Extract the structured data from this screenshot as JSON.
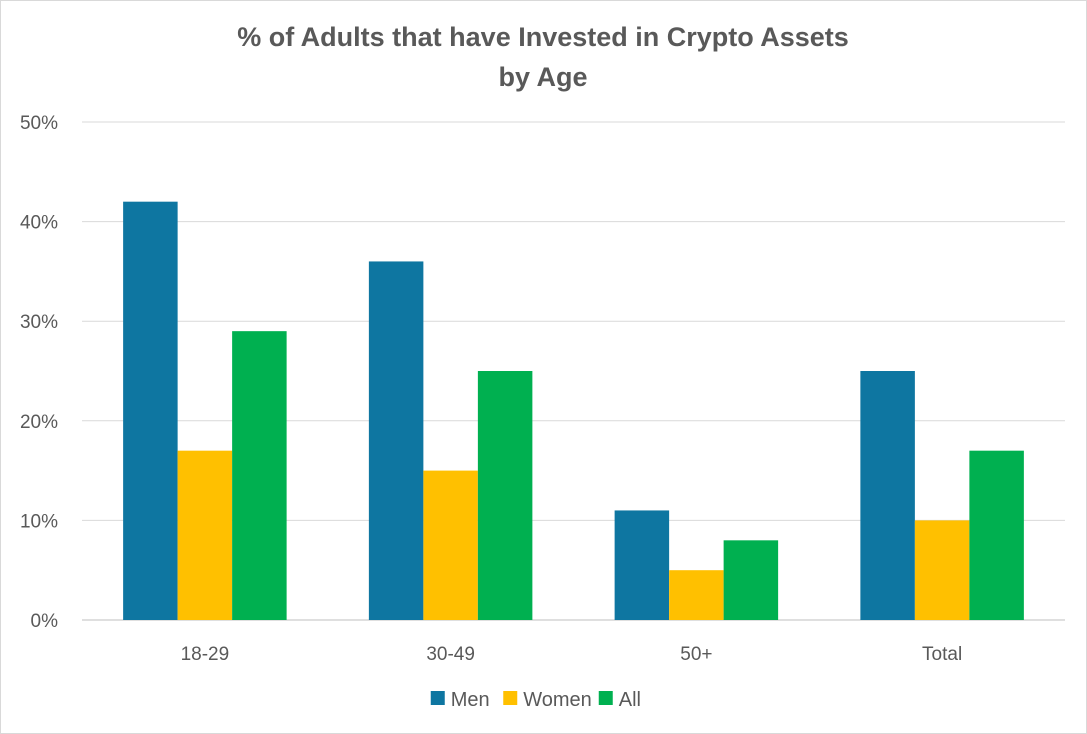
{
  "chart_data": {
    "type": "bar",
    "title_lines": [
      "% of Adults that have Invested in Crypto Assets",
      "by Age"
    ],
    "categories": [
      "18-29",
      "30-49",
      "50+",
      "Total"
    ],
    "series": [
      {
        "name": "Men",
        "color": "#0e76a1",
        "values": [
          42,
          36,
          11,
          25
        ]
      },
      {
        "name": "Women",
        "color": "#ffc000",
        "values": [
          17,
          15,
          5,
          10
        ]
      },
      {
        "name": "All",
        "color": "#00b050",
        "values": [
          29,
          25,
          8,
          17
        ]
      }
    ],
    "ylim": [
      0,
      50
    ],
    "yticks": [
      "0%",
      "10%",
      "20%",
      "30%",
      "40%",
      "50%"
    ],
    "xlabel": "",
    "ylabel": "",
    "grid": true,
    "legend": "bottom"
  }
}
